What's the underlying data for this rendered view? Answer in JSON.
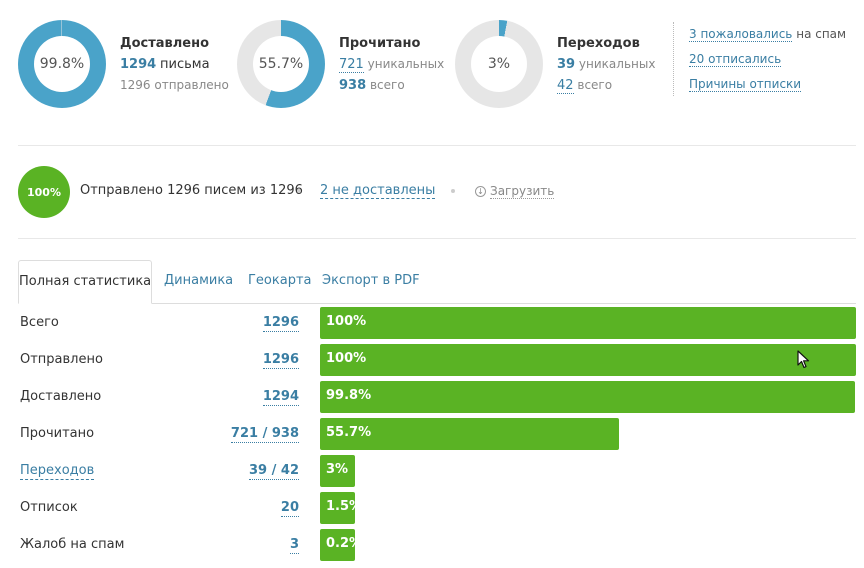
{
  "stats": [
    {
      "title": "Доставлено",
      "percent_text": "99.8%",
      "percent": 99.8,
      "num1": "1294",
      "text1": "письма",
      "num2": "1296",
      "text2": "отправлено",
      "color": "#4aa3c9"
    },
    {
      "title": "Прочитано",
      "percent_text": "55.7%",
      "percent": 55.7,
      "num1": "721",
      "text1": "уникальных",
      "num2": "938",
      "text2": "всего",
      "color": "#4aa3c9"
    },
    {
      "title": "Переходов",
      "percent_text": "3%",
      "percent": 3,
      "num1": "39",
      "text1": "уникальных",
      "num2": "42",
      "text2": "всего",
      "color": "#4aa3c9"
    }
  ],
  "side_links": {
    "spam_link": "3 пожаловались",
    "spam_suffix": "на спам",
    "unsub_link": "20 отписались",
    "reasons_link": "Причины отписки"
  },
  "progress": {
    "circle_text": "100%",
    "circle_percent": 100,
    "sent_text": "Отправлено 1296 писем из 1296",
    "not_delivered": "2 не доставлены",
    "download": "Загрузить",
    "download_icon": "download-icon"
  },
  "tabs": [
    "Полная статистика",
    "Динамика",
    "Геокарта",
    "Экспорт в PDF"
  ],
  "rows": [
    {
      "label": "Всего",
      "value": "1296",
      "percent_text": "100%",
      "percent": 100
    },
    {
      "label": "Отправлено",
      "value": "1296",
      "percent_text": "100%",
      "percent": 100
    },
    {
      "label": "Доставлено",
      "value": "1294",
      "percent_text": "99.8%",
      "percent": 99.8
    },
    {
      "label": "Прочитано",
      "value": "721 / 938",
      "percent_text": "55.7%",
      "percent": 55.7
    },
    {
      "label": "Переходов",
      "value": "39 / 42",
      "percent_text": "3%",
      "percent": 3
    },
    {
      "label": "Отписок",
      "value": "20",
      "percent_text": "1.5%",
      "percent": 1.5
    },
    {
      "label": "Жалоб на спам",
      "value": "3",
      "percent_text": "0.2%",
      "percent": 0.2
    }
  ],
  "colors": {
    "accent": "#3a7ea3",
    "green": "#5ab324",
    "donut": "#4aa3c9",
    "donut_track": "#e6e6e6"
  }
}
